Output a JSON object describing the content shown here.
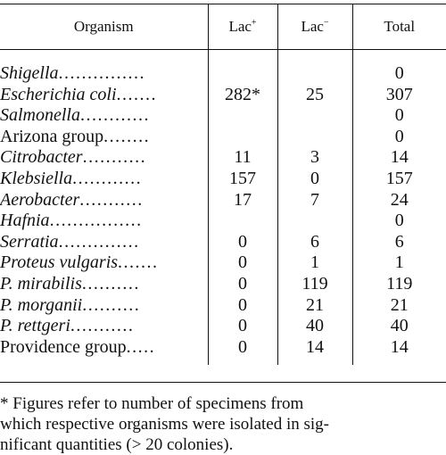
{
  "table": {
    "headers": [
      "Organism",
      "Lac",
      "Lac",
      "Total"
    ],
    "header_sups": [
      "",
      "+",
      "−",
      ""
    ],
    "rows": [
      {
        "organism": "Shigella",
        "italic": true,
        "leader": "...............",
        "lac_pos": "",
        "lac_neg": "",
        "total": "0"
      },
      {
        "organism": "Escherichia coli",
        "italic": true,
        "leader": ".......",
        "lac_pos": "282*",
        "lac_neg": "25",
        "total": "307"
      },
      {
        "organism": "Salmonella",
        "italic": true,
        "leader": "............",
        "lac_pos": "",
        "lac_neg": "",
        "total": "0"
      },
      {
        "organism": "Arizona group",
        "italic": false,
        "leader": "........",
        "lac_pos": "",
        "lac_neg": "",
        "total": "0"
      },
      {
        "organism": "Citrobacter",
        "italic": true,
        "leader": "...........",
        "lac_pos": "11",
        "lac_neg": "3",
        "total": "14"
      },
      {
        "organism": "Klebsiella",
        "italic": true,
        "leader": "............",
        "lac_pos": "157",
        "lac_neg": "0",
        "total": "157"
      },
      {
        "organism": "Aerobacter",
        "italic": true,
        "leader": "...........",
        "lac_pos": "17",
        "lac_neg": "7",
        "total": "24"
      },
      {
        "organism": "Hafnia",
        "italic": true,
        "leader": "................",
        "lac_pos": "",
        "lac_neg": "",
        "total": "0"
      },
      {
        "organism": "Serratia",
        "italic": true,
        "leader": "..............",
        "lac_pos": "0",
        "lac_neg": "6",
        "total": "6"
      },
      {
        "organism": "Proteus vulgaris",
        "italic": true,
        "leader": ".......",
        "lac_pos": "0",
        "lac_neg": "1",
        "total": "1"
      },
      {
        "organism": "P. mirabilis",
        "italic": true,
        "leader": "..........",
        "lac_pos": "0",
        "lac_neg": "119",
        "total": "119"
      },
      {
        "organism": "P. morganii",
        "italic": true,
        "leader": "..........",
        "lac_pos": "0",
        "lac_neg": "21",
        "total": "21"
      },
      {
        "organism": "P. rettgeri",
        "italic": true,
        "leader": "...........",
        "lac_pos": "0",
        "lac_neg": "40",
        "total": "40"
      },
      {
        "organism": "Providence group",
        "italic": false,
        "leader": ".....",
        "lac_pos": "0",
        "lac_neg": "14",
        "total": "14"
      }
    ]
  },
  "footnote": {
    "lines": [
      "* Figures refer to number of specimens from",
      "which respective organisms were isolated in sig-",
      "nificant quantities (> 20 colonies)."
    ]
  }
}
